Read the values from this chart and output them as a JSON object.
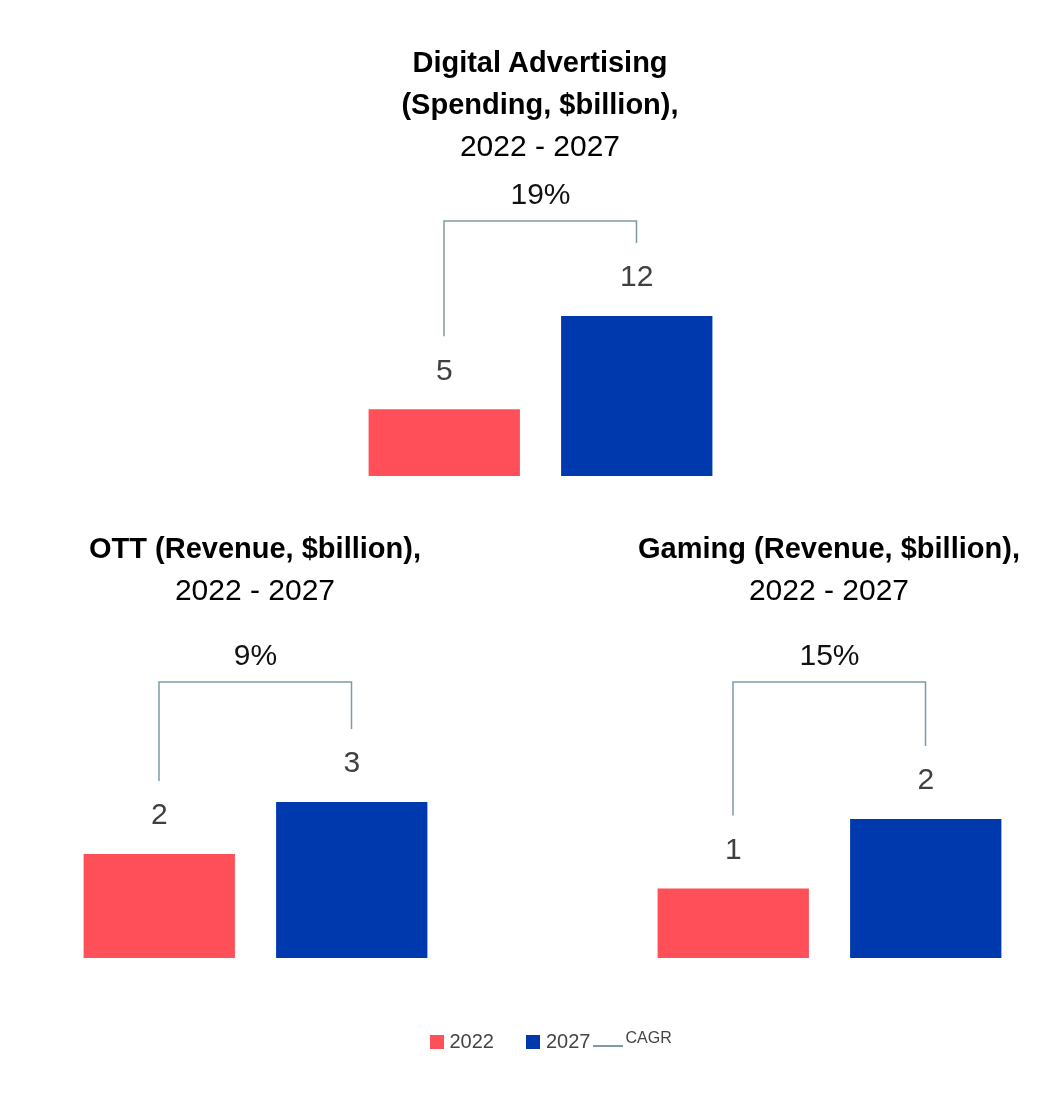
{
  "chart_data": [
    {
      "type": "bar",
      "title": "Digital Advertising (Spending, $billion),",
      "subtitle": "2022 - 2027",
      "categories": [
        null
      ],
      "series": [
        {
          "color": "#ff4f58",
          "values": [
            5
          ]
        },
        {
          "color": "#0038ae",
          "values": [
            12
          ]
        }
      ],
      "data_labels": true,
      "annotations": [
        "19%"
      ],
      "tick_labels": false
    },
    {
      "type": "bar",
      "title": "OTT (Revenue, $billion),",
      "subtitle": "2022 - 2027",
      "categories": [
        null
      ],
      "series": [
        {
          "color": "#ff4f58",
          "values": [
            2
          ]
        },
        {
          "color": "#0038ae",
          "values": [
            3
          ]
        }
      ],
      "data_labels": true,
      "annotations": [
        "9%"
      ],
      "tick_labels": false
    },
    {
      "type": "bar",
      "title": "Gaming (Revenue, $billion),",
      "subtitle": "2022 - 2027",
      "categories": [
        null
      ],
      "series": [
        {
          "name": "2022",
          "color": "#ff4f58",
          "values": [
            1
          ]
        },
        {
          "name": "2027",
          "color": "#0038ae",
          "values": [
            2
          ]
        }
      ],
      "data_labels": true,
      "annotations": [
        "15%",
        "CAGR"
      ],
      "tick_labels": false,
      "legend": "bottom"
    }
  ]
}
